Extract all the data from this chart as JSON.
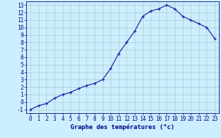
{
  "hours": [
    0,
    1,
    2,
    3,
    4,
    5,
    6,
    7,
    8,
    9,
    10,
    11,
    12,
    13,
    14,
    15,
    16,
    17,
    18,
    19,
    20,
    21,
    22,
    23
  ],
  "temperatures": [
    -1.0,
    -0.5,
    -0.2,
    0.5,
    1.0,
    1.3,
    1.8,
    2.2,
    2.5,
    3.0,
    4.5,
    6.5,
    8.0,
    9.5,
    11.5,
    12.2,
    12.5,
    13.0,
    12.5,
    11.5,
    11.0,
    10.5,
    10.0,
    8.5
  ],
  "line_color": "#2222aa",
  "marker": "+",
  "background_color": "#cceeff",
  "grid_color": "#aacccc",
  "xlabel": "Graphe des températures (°c)",
  "xlim": [
    -0.5,
    23.5
  ],
  "ylim": [
    -1.5,
    13.5
  ],
  "yticks": [
    -1,
    0,
    1,
    2,
    3,
    4,
    5,
    6,
    7,
    8,
    9,
    10,
    11,
    12,
    13
  ],
  "xticks": [
    0,
    1,
    2,
    3,
    4,
    5,
    6,
    7,
    8,
    9,
    10,
    11,
    12,
    13,
    14,
    15,
    16,
    17,
    18,
    19,
    20,
    21,
    22,
    23
  ],
  "axis_color": "#000080",
  "tick_color": "#000080",
  "label_fontsize": 6.5,
  "tick_fontsize": 5.5
}
